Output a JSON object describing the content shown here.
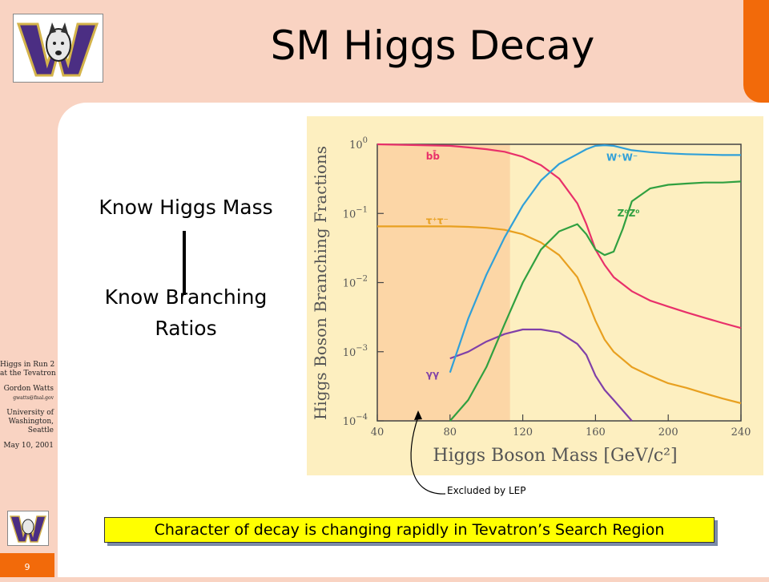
{
  "slide": {
    "title": "SM Higgs Decay",
    "page_number": "9",
    "know_mass": "Know Higgs Mass",
    "know_branching_1": "Know Branching",
    "know_branching_2": "Ratios",
    "excluded_note": "Excluded by LEP",
    "banner": "Character of decay is changing rapidly in Tevatron’s Search Region"
  },
  "sidebar": {
    "line1": "Higgs in Run 2",
    "line2": "at the Tevatron",
    "author": "Gordon Watts",
    "email": "gwatts@fnal.gov",
    "inst1": "University of",
    "inst2": "Washington,",
    "inst3": "Seattle",
    "date": "May 10, 2001"
  },
  "colors": {
    "background": "#f9d3c2",
    "accent": "#f26a0a",
    "banner": "#ffff00",
    "chart_bg": "#fdefc0",
    "excluded_region": "#fcd6a6"
  },
  "chart_data": {
    "type": "line",
    "xlabel": "Higgs Boson Mass [GeV/c²]",
    "ylabel": "Higgs Boson Branching Fractions",
    "xlim": [
      40,
      240
    ],
    "ylim_log10": [
      -4,
      0
    ],
    "y_scale": "log",
    "x_ticks": [
      "40",
      "80",
      "120",
      "160",
      "200",
      "240"
    ],
    "y_ticks": [
      {
        "base": "10",
        "exp": "0"
      },
      {
        "base": "10",
        "exp": "−1"
      },
      {
        "base": "10",
        "exp": "−2"
      },
      {
        "base": "10",
        "exp": "−3"
      },
      {
        "base": "10",
        "exp": "−4"
      }
    ],
    "excluded_region": [
      40,
      113
    ],
    "series": [
      {
        "name": "bb̄",
        "color": "#e8306a",
        "x": [
          40,
          80,
          90,
          100,
          110,
          120,
          130,
          140,
          150,
          155,
          160,
          165,
          170,
          180,
          190,
          200,
          210,
          220,
          230,
          240
        ],
        "y": [
          1.0,
          0.95,
          0.9,
          0.85,
          0.78,
          0.66,
          0.5,
          0.32,
          0.14,
          0.07,
          0.03,
          0.018,
          0.012,
          0.0075,
          0.0055,
          0.0045,
          0.0037,
          0.0031,
          0.0026,
          0.0022
        ]
      },
      {
        "name": "τ⁺τ⁻",
        "color": "#e8a020",
        "x": [
          40,
          80,
          90,
          100,
          110,
          120,
          130,
          140,
          150,
          155,
          160,
          165,
          170,
          180,
          190,
          200,
          210,
          220,
          230,
          240
        ],
        "y": [
          0.065,
          0.065,
          0.064,
          0.062,
          0.058,
          0.05,
          0.038,
          0.025,
          0.012,
          0.006,
          0.0028,
          0.0015,
          0.001,
          0.0006,
          0.00045,
          0.00035,
          0.0003,
          0.00025,
          0.00021,
          0.00018
        ]
      },
      {
        "name": "γγ",
        "color": "#8040a8",
        "x": [
          80,
          90,
          100,
          110,
          120,
          130,
          140,
          150,
          155,
          160,
          165,
          170,
          180
        ],
        "y": [
          0.0008,
          0.001,
          0.0014,
          0.0018,
          0.0021,
          0.0021,
          0.0019,
          0.0013,
          0.0009,
          0.00045,
          0.00028,
          0.0002,
          0.0001
        ]
      },
      {
        "name": "W⁺W⁻",
        "color": "#30a0d8",
        "x": [
          80,
          90,
          100,
          110,
          120,
          130,
          140,
          150,
          155,
          160,
          165,
          170,
          180,
          190,
          200,
          210,
          220,
          230,
          240
        ],
        "y": [
          0.0005,
          0.003,
          0.013,
          0.045,
          0.13,
          0.3,
          0.52,
          0.72,
          0.85,
          0.95,
          0.97,
          0.95,
          0.82,
          0.77,
          0.74,
          0.72,
          0.71,
          0.7,
          0.7
        ]
      },
      {
        "name": "Z⁰Z⁰",
        "color": "#30a040",
        "x": [
          80,
          90,
          100,
          110,
          120,
          130,
          140,
          150,
          155,
          160,
          165,
          170,
          175,
          180,
          190,
          200,
          210,
          220,
          230,
          240
        ],
        "y": [
          0.0001,
          0.0002,
          0.0006,
          0.0025,
          0.01,
          0.03,
          0.055,
          0.07,
          0.05,
          0.03,
          0.025,
          0.028,
          0.06,
          0.15,
          0.23,
          0.26,
          0.27,
          0.28,
          0.28,
          0.29
        ]
      }
    ],
    "label_texts": [
      "bb̄",
      "τ⁺τ⁻",
      "γγ",
      "W⁺W⁻",
      "Z⁰Z⁰"
    ]
  }
}
